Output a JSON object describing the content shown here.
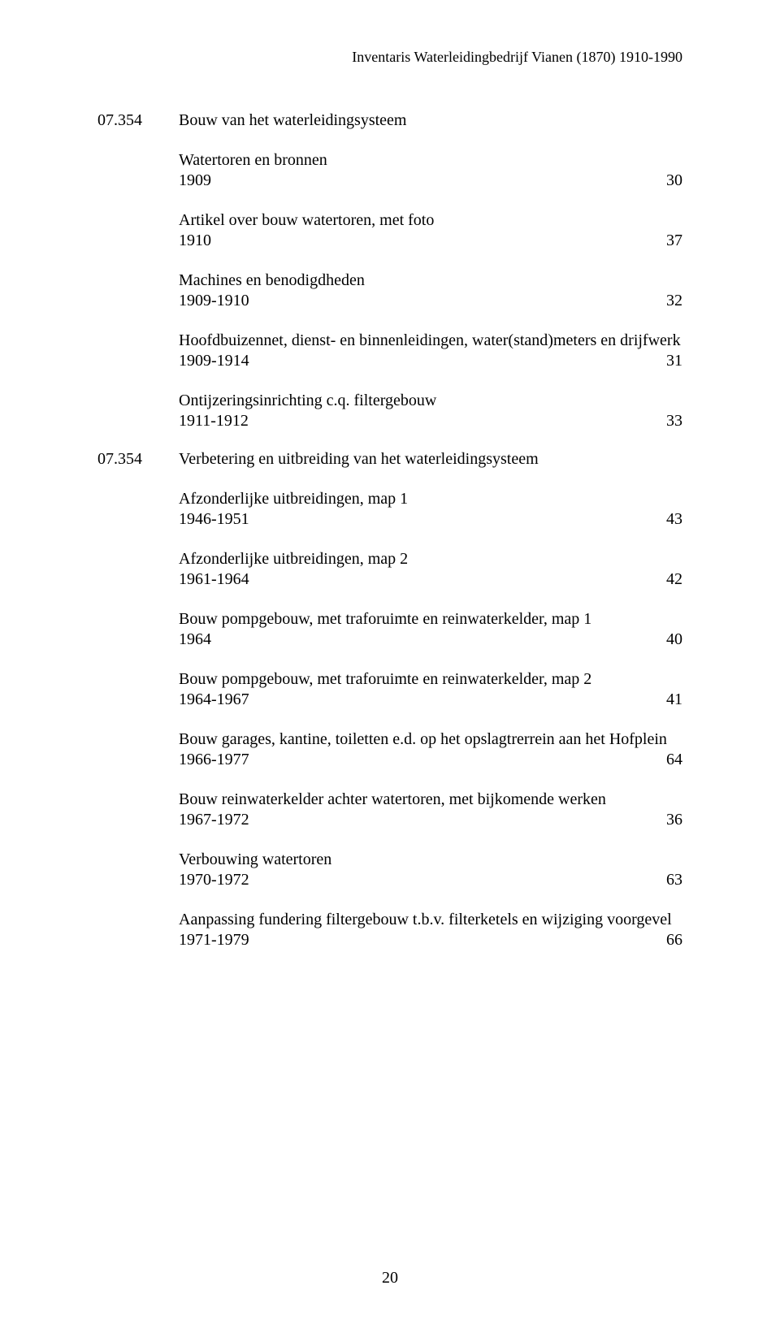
{
  "running_header": "Inventaris Waterleidingbedrijf Vianen (1870) 1910-1990",
  "page_number": "20",
  "sections": [
    {
      "code": "07.354",
      "title": "Bouw van het waterleidingsysteem",
      "entries": [
        {
          "desc": "Watertoren en bronnen",
          "date": "1909",
          "num": "30"
        },
        {
          "desc": "Artikel over bouw watertoren, met foto",
          "date": "1910",
          "num": "37"
        },
        {
          "desc": "Machines en benodigdheden",
          "date": "1909-1910",
          "num": "32"
        },
        {
          "desc": "Hoofdbuizennet, dienst- en binnenleidingen, water(stand)meters en drijfwerk",
          "date": "1909-1914",
          "num": "31"
        },
        {
          "desc": "Ontijzeringsinrichting c.q. filtergebouw",
          "date": "1911-1912",
          "num": "33"
        }
      ]
    },
    {
      "code": "07.354",
      "title": "Verbetering en uitbreiding van het waterleidingsysteem",
      "entries": [
        {
          "desc": "Afzonderlijke uitbreidingen, map 1",
          "date": "1946-1951",
          "num": "43"
        },
        {
          "desc": "Afzonderlijke uitbreidingen, map 2",
          "date": "1961-1964",
          "num": "42"
        },
        {
          "desc": "Bouw pompgebouw, met traforuimte en reinwaterkelder, map 1",
          "date": "1964",
          "num": "40"
        },
        {
          "desc": "Bouw pompgebouw, met traforuimte en reinwaterkelder, map 2",
          "date": "1964-1967",
          "num": "41"
        },
        {
          "desc": "Bouw garages, kantine, toiletten e.d. op het opslagtrerrein aan het Hofplein",
          "date": "1966-1977",
          "num": "64"
        },
        {
          "desc": "Bouw reinwaterkelder achter watertoren, met bijkomende werken",
          "date": "1967-1972",
          "num": "36"
        },
        {
          "desc": "Verbouwing watertoren",
          "date": "1970-1972",
          "num": "63"
        },
        {
          "desc": "Aanpassing fundering filtergebouw t.b.v. filterketels en wijziging voorgevel",
          "date": "1971-1979",
          "num": "66"
        }
      ]
    }
  ]
}
